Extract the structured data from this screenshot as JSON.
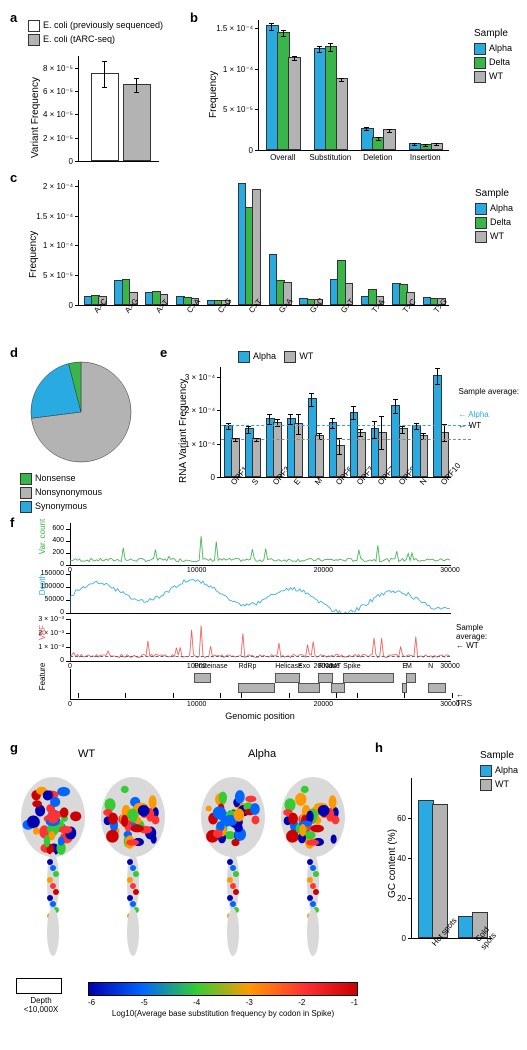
{
  "colors": {
    "alpha": "#29abe2",
    "delta": "#39b54a",
    "wt": "#b3b3b3",
    "white": "#ffffff",
    "green_line": "#39b54a",
    "blue_line": "#29abe2",
    "red_line": "#f15a5a",
    "gray_feature": "#b3b3b3"
  },
  "panel_a": {
    "label": "a",
    "ylabel": "Variant Frequency",
    "ymax": 9e-05,
    "yticks": [
      0,
      2e-05,
      4e-05,
      6e-05,
      8e-05
    ],
    "ytick_labels": [
      "0",
      "2 × 10⁻⁵",
      "4 × 10⁻⁵",
      "6 × 10⁻⁵",
      "8 × 10⁻⁵"
    ],
    "bars": [
      {
        "label": "E. coli (previously sequenced)",
        "value": 7.4e-05,
        "err": 1.1e-05,
        "color": "#ffffff"
      },
      {
        "label": "E. coli (tARC-seq)",
        "value": 6.4e-05,
        "err": 6e-06,
        "color": "#b3b3b3"
      }
    ]
  },
  "panel_b": {
    "label": "b",
    "ylabel": "Frequency",
    "ymax": 0.00016,
    "yticks": [
      0,
      5e-05,
      0.0001,
      0.00015
    ],
    "ytick_labels": [
      "0",
      "5 × 10⁻⁵",
      "1 × 10⁻⁴",
      "1.5 × 10⁻⁴"
    ],
    "legend_title": "Sample",
    "categories": [
      "Overall",
      "Substitution",
      "Deletion",
      "Insertion"
    ],
    "series": [
      {
        "name": "Alpha",
        "color": "#29abe2",
        "values": [
          0.000151,
          0.000123,
          2.5e-05,
          6e-06
        ],
        "errs": [
          4e-06,
          4e-06,
          2e-06,
          1e-06
        ]
      },
      {
        "name": "Delta",
        "color": "#39b54a",
        "values": [
          0.000143,
          0.000126,
          1.3e-05,
          5e-06
        ],
        "errs": [
          4e-06,
          5e-06,
          2e-06,
          1e-06
        ]
      },
      {
        "name": "WT",
        "color": "#b3b3b3",
        "values": [
          0.000112,
          8.6e-05,
          2.3e-05,
          6e-06
        ],
        "errs": [
          3e-06,
          2e-06,
          2e-06,
          1e-06
        ]
      }
    ]
  },
  "panel_c": {
    "label": "c",
    "ylabel": "Frequency",
    "ymax": 0.00021,
    "yticks": [
      0,
      5e-05,
      0.0001,
      0.00015,
      0.0002
    ],
    "ytick_labels": [
      "0",
      "5 × 10⁻⁵",
      "1 × 10⁻⁴",
      "1.5 × 10⁻⁴",
      "2 × 10⁻⁴"
    ],
    "legend_title": "Sample",
    "categories": [
      "A>C",
      "A>G",
      "A>T",
      "C>A",
      "C>G",
      "C>T",
      "G>A",
      "G>C",
      "G>T",
      "T>A",
      "T>C",
      "T>G"
    ],
    "series": [
      {
        "name": "Alpha",
        "color": "#29abe2",
        "values": [
          1.2e-05,
          3.8e-05,
          1.9e-05,
          1.1e-05,
          5e-06,
          0.000202,
          8.3e-05,
          8e-06,
          4.1e-05,
          1.2e-05,
          3.4e-05,
          1e-05
        ]
      },
      {
        "name": "Delta",
        "color": "#39b54a",
        "values": [
          1.3e-05,
          4e-05,
          2e-05,
          1e-05,
          5e-06,
          0.000162,
          3.8e-05,
          7e-06,
          7.3e-05,
          2.4e-05,
          3.2e-05,
          9e-06
        ]
      },
      {
        "name": "WT",
        "color": "#b3b3b3",
        "values": [
          1.2e-05,
          1.8e-05,
          1.5e-05,
          9e-06,
          5e-06,
          0.000192,
          3.5e-05,
          6e-06,
          3.3e-05,
          1.1e-05,
          1.8e-05,
          8e-06
        ]
      }
    ]
  },
  "panel_d": {
    "label": "d",
    "legend": [
      {
        "name": "Nonsense",
        "color": "#39b54a"
      },
      {
        "name": "Nonsynonymous",
        "color": "#b3b3b3"
      },
      {
        "name": "Synonymous",
        "color": "#29abe2"
      }
    ],
    "slices": [
      {
        "fraction": 0.73,
        "color": "#b3b3b3"
      },
      {
        "fraction": 0.23,
        "color": "#29abe2"
      },
      {
        "fraction": 0.04,
        "color": "#39b54a"
      }
    ]
  },
  "panel_e": {
    "label": "e",
    "ylabel": "RNA Variant Frequency",
    "ymax": 0.00033,
    "yticks": [
      0,
      0.0001,
      0.0002,
      0.0003
    ],
    "ytick_labels": [
      "0",
      "1 × 10⁻⁴",
      "2 × 10⁻⁴",
      "3 × 10⁻⁴"
    ],
    "categories": [
      "ORF1ab",
      "S",
      "ORF3a",
      "E",
      "M",
      "ORF6",
      "ORF7a",
      "ORF7b",
      "ORF8",
      "N",
      "ORF10"
    ],
    "legend_items": [
      {
        "name": "Alpha",
        "color": "#29abe2"
      },
      {
        "name": "WT",
        "color": "#b3b3b3"
      }
    ],
    "series": [
      {
        "name": "Alpha",
        "color": "#29abe2",
        "values": [
          0.00015,
          0.00014,
          0.00017,
          0.00017,
          0.00023,
          0.00016,
          0.00019,
          0.00014,
          0.00021,
          0.00015,
          0.0003
        ],
        "errs": [
          1e-05,
          1e-05,
          1.5e-05,
          1.5e-05,
          2e-05,
          1.5e-05,
          2e-05,
          2.5e-05,
          2e-05,
          1e-05,
          2.5e-05
        ]
      },
      {
        "name": "WT",
        "color": "#b3b3b3",
        "values": [
          0.00011,
          0.00011,
          0.00016,
          0.000155,
          0.00012,
          9e-05,
          0.00013,
          0.00013,
          0.00014,
          0.00012,
          0.00013
        ],
        "errs": [
          5e-06,
          5e-06,
          1e-05,
          3e-05,
          1e-05,
          2.5e-05,
          1e-05,
          5e-05,
          1e-05,
          1e-05,
          2.5e-05
        ]
      }
    ],
    "avg_label": "Sample average:",
    "avg_alpha": 0.000155,
    "avg_wt": 0.000115,
    "avg_alpha_name": "Alpha",
    "avg_wt_name": "WT"
  },
  "panel_f": {
    "label": "f",
    "xmax": 30000,
    "xticks": [
      0,
      10000,
      20000,
      30000
    ],
    "xlabel": "Genomic position",
    "tracks": [
      {
        "name": "Var. count",
        "color": "#39b54a",
        "ymax": 700,
        "yticks": [
          0,
          200,
          400,
          600
        ]
      },
      {
        "name": "Depth",
        "color": "#29abe2",
        "ymax": 160000,
        "yticks": [
          0,
          50000,
          100000,
          150000
        ]
      },
      {
        "name": "VAF",
        "color": "#f15a5a",
        "ymax": 0.003,
        "yticks": [
          0,
          0.001,
          0.002,
          0.003
        ],
        "ytick_labels": [
          "0",
          "1 × 10⁻³",
          "2 × 10⁻³",
          "3 × 10⁻³"
        ],
        "avg_label": "Sample average:",
        "avg_name": "WT"
      }
    ],
    "features": [
      {
        "name": "Proteinase",
        "start": 9800,
        "end": 11000
      },
      {
        "name": "RdRp",
        "start": 13300,
        "end": 16000
      },
      {
        "name": "Helicase",
        "start": 16200,
        "end": 18000
      },
      {
        "name": "Exo",
        "start": 18000,
        "end": 19600
      },
      {
        "name": "RNase",
        "start": 19600,
        "end": 20600
      },
      {
        "name": "MT",
        "start": 20600,
        "end": 21550
      },
      {
        "name": "Spike",
        "start": 21563,
        "end": 25384
      },
      {
        "name": "E",
        "start": 26245,
        "end": 26472
      },
      {
        "name": "M",
        "start": 26523,
        "end": 27191
      },
      {
        "name": "N",
        "start": 28274,
        "end": 29533
      }
    ],
    "feature_label": "Feature",
    "trs_label": "TRS"
  },
  "panel_g": {
    "label": "g",
    "titles": [
      "WT",
      "Alpha"
    ],
    "depth_box_label": "Depth <10,000X",
    "grad_label": "Log10(Average base substitution frequency by codon in Spike)",
    "grad_ticks": [
      "-6",
      "-5",
      "-4",
      "-3",
      "-2",
      "-1"
    ],
    "grad_colors": [
      "#0000b3",
      "#0066ff",
      "#33cc33",
      "#ff9900",
      "#ff3333",
      "#cc0000"
    ]
  },
  "panel_h": {
    "label": "h",
    "ylabel": "GC content (%)",
    "ymax": 80,
    "yticks": [
      0,
      20,
      40,
      60
    ],
    "legend_title": "Sample",
    "categories": [
      "Hot spots",
      "Cold spots"
    ],
    "series": [
      {
        "name": "Alpha",
        "color": "#29abe2",
        "values": [
          68,
          10
        ]
      },
      {
        "name": "WT",
        "color": "#b3b3b3",
        "values": [
          66,
          12
        ]
      }
    ]
  }
}
